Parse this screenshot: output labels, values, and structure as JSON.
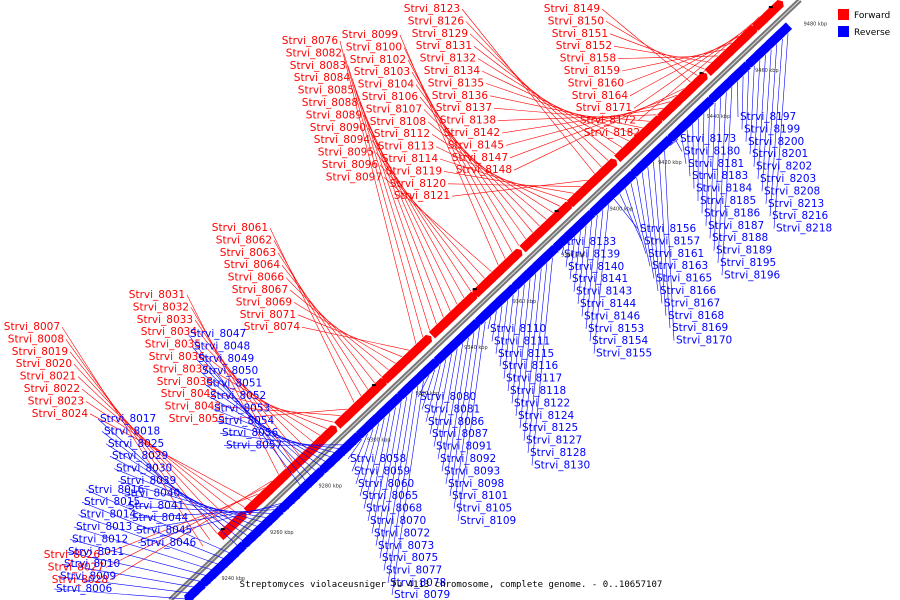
{
  "caption": "Streptomyces violaceusniger Tu 4113 chromosome, complete genome. - 0..10657107",
  "legend": [
    {
      "label": "Forward",
      "color": "#ff0000"
    },
    {
      "label": "Reverse",
      "color": "#0000ff"
    }
  ],
  "axis_ticks": [
    "9240 kbp",
    "9260 kbp",
    "9280 kbp",
    "9300 kbp",
    "9320 kbp",
    "9340 kbp",
    "9360 kbp",
    "9380 kbp",
    "9400 kbp",
    "9420 kbp",
    "9440 kbp",
    "9460 kbp",
    "9480 kbp"
  ],
  "forward_genes": [
    "Strvi_8007",
    "Strvi_8008",
    "Strvi_8019",
    "Strvi_8020",
    "Strvi_8021",
    "Strvi_8022",
    "Strvi_8023",
    "Strvi_8024",
    "Strvi_8026",
    "Strvi_8027",
    "Strvi_8028",
    "Strvi_8031",
    "Strvi_8032",
    "Strvi_8033",
    "Strvi_8034",
    "Strvi_8035",
    "Strvi_8036",
    "Strvi_8037",
    "Strvi_8038",
    "Strvi_8042",
    "Strvi_8043",
    "Strvi_8055",
    "Strvi_8061",
    "Strvi_8062",
    "Strvi_8063",
    "Strvi_8064",
    "Strvi_8066",
    "Strvi_8067",
    "Strvi_8069",
    "Strvi_8071",
    "Strvi_8074",
    "Strvi_8076",
    "Strvi_8082",
    "Strvi_8083",
    "Strvi_8084",
    "Strvi_8085",
    "Strvi_8088",
    "Strvi_8089",
    "Strvi_8090",
    "Strvi_8094",
    "Strvi_8095",
    "Strvi_8096",
    "Strvi_8097",
    "Strvi_8099",
    "Strvi_8100",
    "Strvi_8102",
    "Strvi_8103",
    "Strvi_8104",
    "Strvi_8106",
    "Strvi_8107",
    "Strvi_8108",
    "Strvi_8112",
    "Strvi_8113",
    "Strvi_8114",
    "Strvi_8119",
    "Strvi_8120",
    "Strvi_8121",
    "Strvi_8123",
    "Strvi_8126",
    "Strvi_8129",
    "Strvi_8131",
    "Strvi_8132",
    "Strvi_8134",
    "Strvi_8135",
    "Strvi_8136",
    "Strvi_8137",
    "Strvi_8138",
    "Strvi_8142",
    "Strvi_8145",
    "Strvi_8147",
    "Strvi_8148",
    "Strvi_8149",
    "Strvi_8150",
    "Strvi_8151",
    "Strvi_8152",
    "Strvi_8158",
    "Strvi_8159",
    "Strvi_8160",
    "Strvi_8164",
    "Strvi_8171",
    "Strvi_8172",
    "Strvi_8182"
  ],
  "reverse_genes": [
    "Strvi_8006",
    "Strvi_8009",
    "Strvi_8010",
    "Strvi_8011",
    "Strvi_8012",
    "Strvi_8013",
    "Strvi_8014",
    "Strvi_8015",
    "Strvi_8016",
    "Strvi_8017",
    "Strvi_8018",
    "Strvi_8025",
    "Strvi_8029",
    "Strvi_8030",
    "Strvi_8039",
    "Strvi_8040",
    "Strvi_8041",
    "Strvi_8044",
    "Strvi_8045",
    "Strvi_8046",
    "Strvi_8047",
    "Strvi_8048",
    "Strvi_8049",
    "Strvi_8050",
    "Strvi_8051",
    "Strvi_8052",
    "Strvi_8053",
    "Strvi_8054",
    "Strvi_8056",
    "Strvi_8057",
    "Strvi_8058",
    "Strvi_8059",
    "Strvi_8060",
    "Strvi_8065",
    "Strvi_8068",
    "Strvi_8070",
    "Strvi_8072",
    "Strvi_8073",
    "Strvi_8075",
    "Strvi_8077",
    "Strvi_8078",
    "Strvi_8079",
    "Strvi_8080",
    "Strvi_8081",
    "Strvi_8086",
    "Strvi_8087",
    "Strvi_8091",
    "Strvi_8092",
    "Strvi_8093",
    "Strvi_8098",
    "Strvi_8101",
    "Strvi_8105",
    "Strvi_8109",
    "Strvi_8110",
    "Strvi_8111",
    "Strvi_8115",
    "Strvi_8116",
    "Strvi_8117",
    "Strvi_8118",
    "Strvi_8122",
    "Strvi_8124",
    "Strvi_8125",
    "Strvi_8127",
    "Strvi_8128",
    "Strvi_8130",
    "Strvi_8133",
    "Strvi_8139",
    "Strvi_8140",
    "Strvi_8141",
    "Strvi_8143",
    "Strvi_8144",
    "Strvi_8146",
    "Strvi_8153",
    "Strvi_8154",
    "Strvi_8155",
    "Strvi_8156",
    "Strvi_8157",
    "Strvi_8161",
    "Strvi_8163",
    "Strvi_8165",
    "Strvi_8166",
    "Strvi_8167",
    "Strvi_8168",
    "Strvi_8169",
    "Strvi_8170",
    "Strvi_8173",
    "Strvi_8180",
    "Strvi_8181",
    "Strvi_8183",
    "Strvi_8184",
    "Strvi_8185",
    "Strvi_8186",
    "Strvi_8187",
    "Strvi_8188",
    "Strvi_8189",
    "Strvi_8195",
    "Strvi_8196",
    "Strvi_8197",
    "Strvi_8199",
    "Strvi_8200",
    "Strvi_8201",
    "Strvi_8202",
    "Strvi_8203",
    "Strvi_8208",
    "Strvi_8213",
    "Strvi_8216",
    "Strvi_8218"
  ]
}
